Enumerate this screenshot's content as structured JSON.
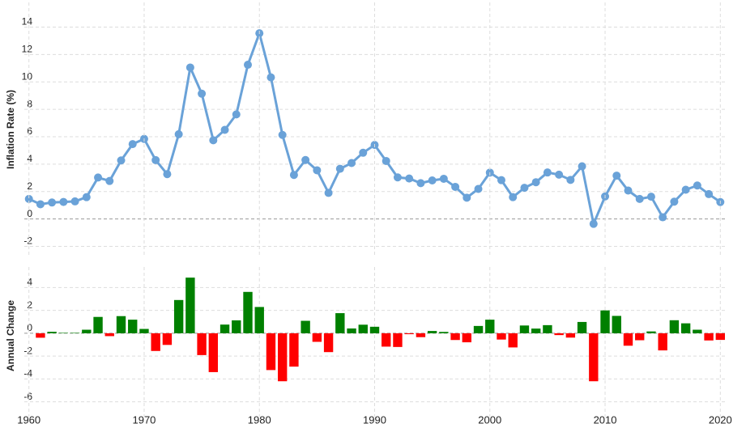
{
  "chart_data": [
    {
      "type": "line",
      "ylabel": "Inflation Rate (%)",
      "color": "#6aa2d8",
      "grid": true,
      "x": [
        1960,
        1961,
        1962,
        1963,
        1964,
        1965,
        1966,
        1967,
        1968,
        1969,
        1970,
        1971,
        1972,
        1973,
        1974,
        1975,
        1976,
        1977,
        1978,
        1979,
        1980,
        1981,
        1982,
        1983,
        1984,
        1985,
        1986,
        1987,
        1988,
        1989,
        1990,
        1991,
        1992,
        1993,
        1994,
        1995,
        1996,
        1997,
        1998,
        1999,
        2000,
        2001,
        2002,
        2003,
        2004,
        2005,
        2006,
        2007,
        2008,
        2009,
        2010,
        2011,
        2012,
        2013,
        2014,
        2015,
        2016,
        2017,
        2018,
        2019,
        2020
      ],
      "values": [
        1.46,
        1.07,
        1.2,
        1.24,
        1.28,
        1.59,
        3.02,
        2.77,
        4.27,
        5.46,
        5.84,
        4.29,
        3.27,
        6.18,
        11.05,
        9.14,
        5.74,
        6.5,
        7.63,
        11.25,
        13.55,
        10.33,
        6.13,
        3.21,
        4.3,
        3.55,
        1.9,
        3.66,
        4.08,
        4.83,
        5.4,
        4.23,
        3.03,
        2.95,
        2.61,
        2.81,
        2.93,
        2.34,
        1.55,
        2.19,
        3.38,
        2.83,
        1.59,
        2.27,
        2.68,
        3.39,
        3.23,
        2.85,
        3.84,
        -0.36,
        1.64,
        3.16,
        2.07,
        1.46,
        1.62,
        0.12,
        1.26,
        2.13,
        2.44,
        1.81,
        1.23
      ],
      "xlim": [
        1959.6,
        2020.4
      ],
      "ylim": [
        -2.8,
        15.8
      ],
      "yticks": [
        -2,
        0,
        2,
        4,
        6,
        8,
        10,
        12,
        14
      ]
    },
    {
      "type": "bar",
      "ylabel": "Annual Change",
      "positive_color": "#008000",
      "negative_color": "#ff0000",
      "grid": true,
      "x": [
        1961,
        1962,
        1963,
        1964,
        1965,
        1966,
        1967,
        1968,
        1969,
        1970,
        1971,
        1972,
        1973,
        1974,
        1975,
        1976,
        1977,
        1978,
        1979,
        1980,
        1981,
        1982,
        1983,
        1984,
        1985,
        1986,
        1987,
        1988,
        1989,
        1990,
        1991,
        1992,
        1993,
        1994,
        1995,
        1996,
        1997,
        1998,
        1999,
        2000,
        2001,
        2002,
        2003,
        2004,
        2005,
        2006,
        2007,
        2008,
        2009,
        2010,
        2011,
        2012,
        2013,
        2014,
        2015,
        2016,
        2017,
        2018,
        2019,
        2020
      ],
      "values": [
        -0.39,
        0.13,
        0.04,
        0.04,
        0.31,
        1.43,
        -0.25,
        1.5,
        1.19,
        0.38,
        -1.55,
        -1.02,
        2.91,
        4.87,
        -1.91,
        -3.4,
        0.76,
        1.13,
        3.62,
        2.3,
        -3.22,
        -4.2,
        -2.92,
        1.09,
        -0.75,
        -1.65,
        1.76,
        0.42,
        0.75,
        0.57,
        -1.17,
        -1.2,
        -0.08,
        -0.34,
        0.2,
        0.12,
        -0.59,
        -0.79,
        0.64,
        1.19,
        -0.55,
        -1.24,
        0.68,
        0.41,
        0.71,
        -0.16,
        -0.38,
        0.99,
        -4.2,
        2.0,
        1.52,
        -1.09,
        -0.61,
        0.16,
        -1.5,
        1.14,
        0.87,
        0.31,
        -0.63,
        -0.58
      ],
      "xlim": [
        1959.6,
        2020.4
      ],
      "ylim": [
        -7.3,
        5.8
      ],
      "yticks": [
        -6,
        -4,
        -2,
        0,
        2,
        4
      ],
      "xticks": [
        1960,
        1970,
        1980,
        1990,
        2000,
        2010,
        2020
      ]
    }
  ]
}
